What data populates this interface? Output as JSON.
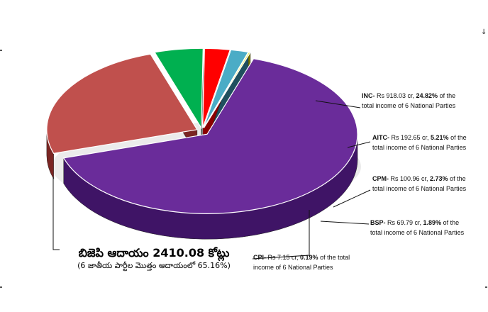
{
  "chart_data": {
    "type": "pie",
    "style": "3d-exploded",
    "slices": [
      {
        "party": "BJP",
        "amount_cr": 2410.08,
        "pct": 65.16,
        "color": "#6a2c9a",
        "dark": "#3f1466"
      },
      {
        "party": "INC",
        "amount_cr": 918.03,
        "pct": 24.82,
        "color": "#c0504d",
        "dark": "#7a2523"
      },
      {
        "party": "AITC",
        "amount_cr": 192.65,
        "pct": 5.21,
        "color": "#00b050",
        "dark": "#0b5a2e"
      },
      {
        "party": "CPM",
        "amount_cr": 100.96,
        "pct": 2.73,
        "color": "#ff0000",
        "dark": "#8a0000"
      },
      {
        "party": "BSP",
        "amount_cr": 69.79,
        "pct": 1.89,
        "color": "#4bacc6",
        "dark": "#1f4f5e"
      },
      {
        "party": "CPI",
        "amount_cr": 7.15,
        "pct": 0.19,
        "color": "#f0f060",
        "dark": "#7a7a00"
      }
    ]
  },
  "labels": {
    "inc": {
      "prefix": "INC-",
      "mid": " Rs 918.03 cr, ",
      "pct": "24.82%",
      "rest": " of the",
      "line2": "total income of 6 National Parties"
    },
    "aitc": {
      "prefix": "AITC-",
      "mid": " Rs 192.65 cr, ",
      "pct": "5.21%",
      "rest": " of the",
      "line2": "total income of 6 National Parties"
    },
    "cpm": {
      "prefix": "CPM-",
      "mid": " Rs 100.96 cr, ",
      "pct": "2.73%",
      "rest": " of  the",
      "line2": "total income of 6 National Parties"
    },
    "bsp": {
      "prefix": "BSP-",
      "mid": " Rs 69.79 cr, ",
      "pct": "1.89%",
      "rest": " of the",
      "line2": "total income of 6 National Parties"
    },
    "cpi": {
      "prefix": "CPI-",
      "mid": " Rs 7.15 cr, ",
      "pct": "0.19%",
      "rest": " of the total",
      "line2": "income of 6 National Parties"
    }
  },
  "bjp_note": {
    "title": "బిజెపి ఆదాయం 2410.08 కోట్లు",
    "subtitle": "(6 జాతీయ పార్టీల మొత్తం ఆదాయంలో 65.16%)"
  },
  "edge_mark": "↓"
}
